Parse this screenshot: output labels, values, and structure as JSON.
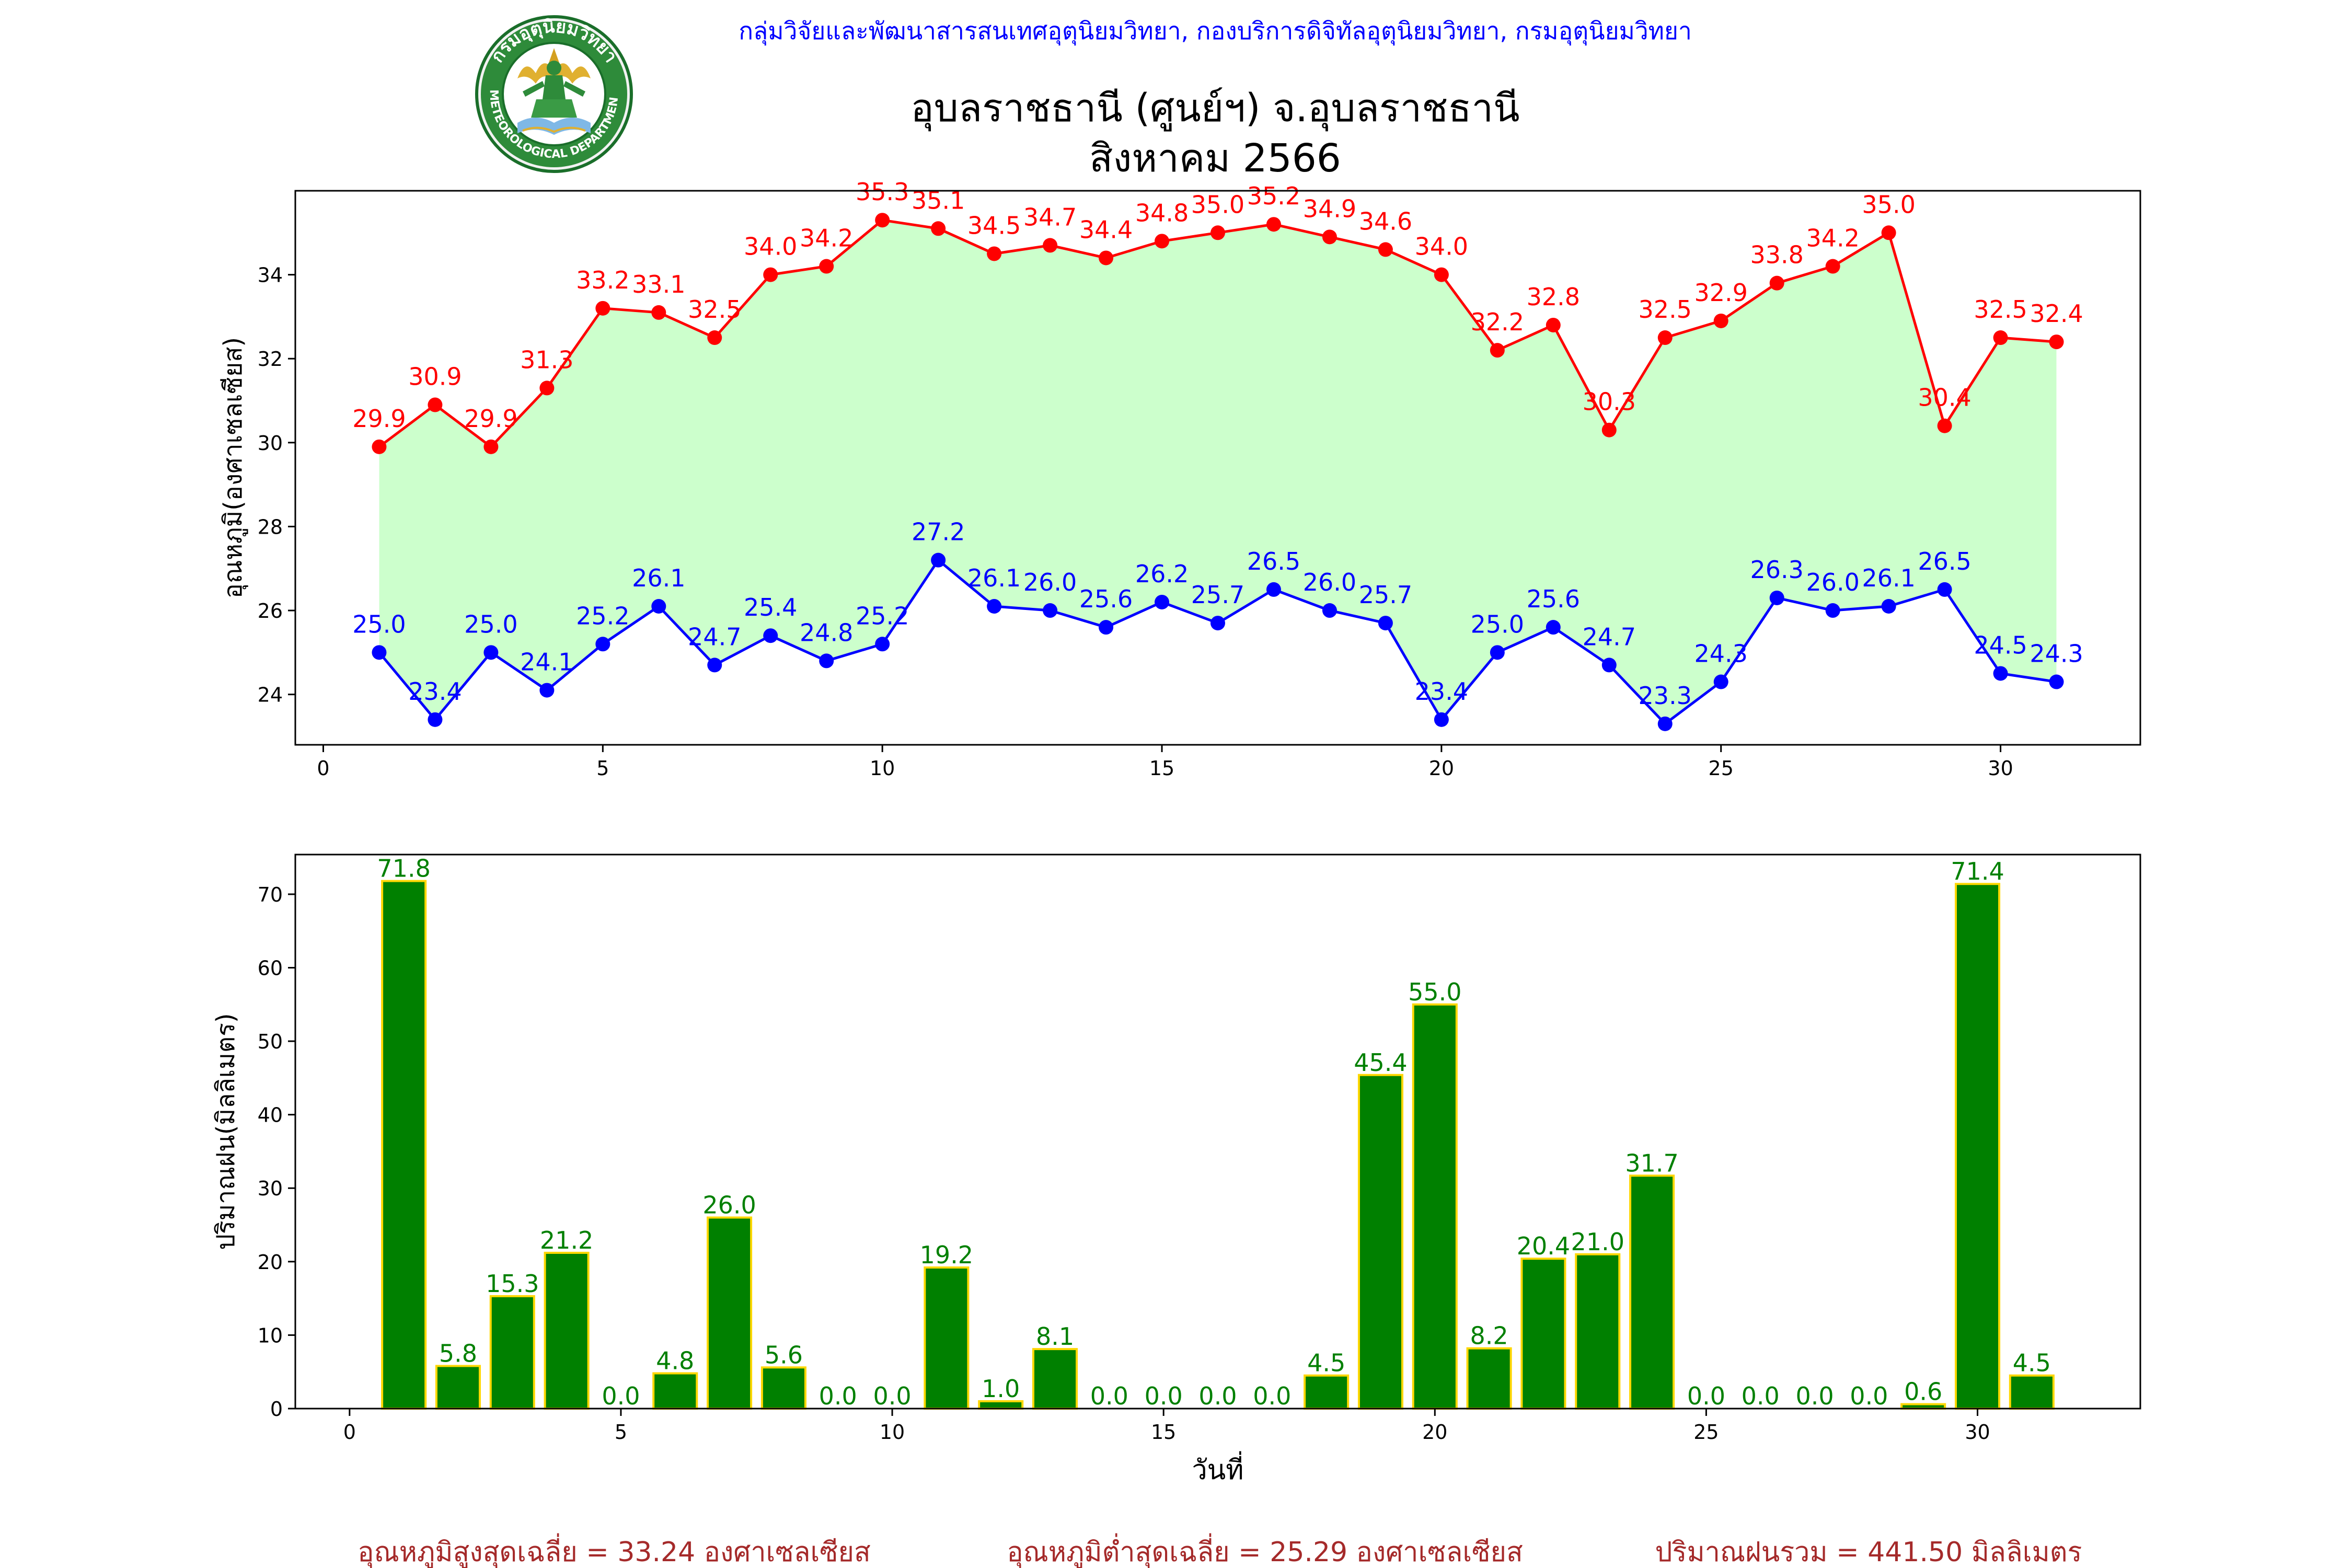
{
  "header": {
    "agency": "กลุ่มวิจัยและพัฒนาสารสนเทศอุตุนิยมวิทยา, กองบริการดิจิทัลอุตุนิยมวิทยา, กรมอุตุนิยมวิทยา",
    "station": "อุบลราชธานี (ศูนย์ฯ) จ.อุบลราชธานี",
    "period": "สิงหาคม 2566",
    "logo_top_text": "กรมอุตุนิยมวิทยา",
    "logo_bottom_text": "METEOROLOGICAL DEPARTMENT"
  },
  "colors": {
    "max_line": "#ff0000",
    "min_line": "#0000ff",
    "fill": "#ccffcc",
    "bar_fill": "#008000",
    "bar_edge": "#ffd700",
    "bar_label": "#008000",
    "summary_text": "#a52a2a",
    "agency_text": "#0000ff"
  },
  "chart_data": [
    {
      "type": "line",
      "title": "",
      "xlabel": "",
      "ylabel": "อุณหภูมิ(องศาเซลเซียส)",
      "xlim": [
        -0.5,
        32.5
      ],
      "ylim": [
        22.8,
        36.0
      ],
      "xticks": [
        0,
        5,
        10,
        15,
        20,
        25,
        30
      ],
      "yticks": [
        24,
        26,
        28,
        30,
        32,
        34
      ],
      "grid": false,
      "x": [
        1,
        2,
        3,
        4,
        5,
        6,
        7,
        8,
        9,
        10,
        11,
        12,
        13,
        14,
        15,
        16,
        17,
        18,
        19,
        20,
        21,
        22,
        23,
        24,
        25,
        26,
        27,
        28,
        29,
        30,
        31
      ],
      "series": [
        {
          "key": "max",
          "values": [
            29.9,
            30.9,
            29.9,
            31.3,
            33.2,
            33.1,
            32.5,
            34.0,
            34.2,
            35.3,
            35.1,
            34.5,
            34.7,
            34.4,
            34.8,
            35.0,
            35.2,
            34.9,
            34.6,
            34.0,
            32.2,
            32.8,
            30.3,
            32.5,
            32.9,
            33.8,
            34.2,
            35.0,
            30.4,
            32.5,
            32.4
          ]
        },
        {
          "key": "min",
          "values": [
            25.0,
            23.4,
            25.0,
            24.1,
            25.2,
            26.1,
            24.7,
            25.4,
            24.8,
            25.2,
            27.2,
            26.1,
            26.0,
            25.6,
            26.2,
            25.7,
            26.5,
            26.0,
            25.7,
            23.4,
            25.0,
            25.6,
            24.7,
            23.3,
            24.3,
            26.3,
            26.0,
            26.1,
            26.5,
            24.5,
            24.3
          ]
        }
      ]
    },
    {
      "type": "bar",
      "title": "",
      "xlabel": "วันที่",
      "ylabel": "ปริมาณฝน(มิลลิเมตร)",
      "xlim": [
        -1,
        33
      ],
      "ylim": [
        0,
        75.4
      ],
      "xticks": [
        0,
        5,
        10,
        15,
        20,
        25,
        30
      ],
      "yticks": [
        0,
        10,
        20,
        30,
        40,
        50,
        60,
        70
      ],
      "grid": false,
      "x": [
        1,
        2,
        3,
        4,
        5,
        6,
        7,
        8,
        9,
        10,
        11,
        12,
        13,
        14,
        15,
        16,
        17,
        18,
        19,
        20,
        21,
        22,
        23,
        24,
        25,
        26,
        27,
        28,
        29,
        30,
        31
      ],
      "values": [
        71.8,
        5.8,
        15.3,
        21.2,
        0.0,
        4.8,
        26.0,
        5.6,
        0.0,
        0.0,
        19.2,
        1.0,
        8.1,
        0.0,
        0.0,
        0.0,
        0.0,
        4.5,
        45.4,
        55.0,
        8.2,
        20.4,
        21.0,
        31.7,
        0.0,
        0.0,
        0.0,
        0.0,
        0.6,
        71.4,
        4.5
      ]
    }
  ],
  "summary": {
    "avg_max": "อุณหภูมิสูงสุดเฉลี่ย = 33.24 องศาเซลเซียส",
    "avg_min": "อุณหภูมิต่ำสุดเฉลี่ย = 25.29 องศาเซลเซียส",
    "total_rain": "ปริมาณฝนรวม = 441.50 มิลลิเมตร"
  }
}
